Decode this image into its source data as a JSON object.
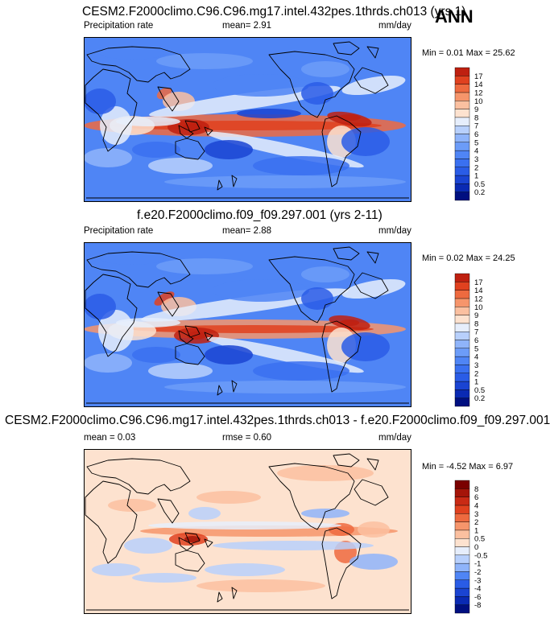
{
  "season": "ANN",
  "chart_data": [
    {
      "type": "heatmap",
      "title": "CESM2.F2000climo.C96.C96.mg17.intel.432pes.1thrds.ch013 (yrs 1)",
      "left_label": "Precipitation rate",
      "mean_text": "mean=  2.91",
      "units": "mm/day",
      "min_max_text": "Min =  0.01 Max = 25.62",
      "min": 0.01,
      "max": 25.62,
      "colorbar_levels": [
        "0.2",
        "0.5",
        "1",
        "2",
        "3",
        "4",
        "5",
        "6",
        "7",
        "8",
        "9",
        "10",
        "12",
        "14",
        "17"
      ],
      "colorbar_colors": [
        "#000f80",
        "#0a2ab3",
        "#1a44d2",
        "#2a5ce6",
        "#3a70f0",
        "#4f85f5",
        "#6c9cf8",
        "#8fb4fa",
        "#b8d0fc",
        "#e6eefc",
        "#fde2cf",
        "#fbc0a0",
        "#f6956b",
        "#ee6a3f",
        "#e0411f",
        "#bf2010"
      ]
    },
    {
      "type": "heatmap",
      "title": "f.e20.F2000climo.f09_f09.297.001 (yrs 2-11)",
      "left_label": "Precipitation rate",
      "mean_text": "mean=  2.88",
      "units": "mm/day",
      "min_max_text": "Min =  0.02 Max = 24.25",
      "min": 0.02,
      "max": 24.25,
      "colorbar_levels": [
        "0.2",
        "0.5",
        "1",
        "2",
        "3",
        "4",
        "5",
        "6",
        "7",
        "8",
        "9",
        "10",
        "12",
        "14",
        "17"
      ],
      "colorbar_colors": [
        "#000f80",
        "#0a2ab3",
        "#1a44d2",
        "#2a5ce6",
        "#3a70f0",
        "#4f85f5",
        "#6c9cf8",
        "#8fb4fa",
        "#b8d0fc",
        "#e6eefc",
        "#fde2cf",
        "#fbc0a0",
        "#f6956b",
        "#ee6a3f",
        "#e0411f",
        "#bf2010"
      ]
    },
    {
      "type": "heatmap",
      "title": "CESM2.F2000climo.C96.C96.mg17.intel.432pes.1thrds.ch013 - f.e20.F2000climo.f09_f09.297.001",
      "left_label": "mean =   0.03",
      "mean_text": "rmse =   0.60",
      "units": "mm/day",
      "min_max_text": "Min = -4.52 Max =   6.97",
      "min": -4.52,
      "max": 6.97,
      "colorbar_levels": [
        "-8",
        "-6",
        "-4",
        "-3",
        "-2",
        "-1",
        "-0.5",
        "0",
        "0.5",
        "1",
        "2",
        "3",
        "4",
        "6",
        "8"
      ],
      "colorbar_colors": [
        "#000f80",
        "#0a2ab3",
        "#1a44d2",
        "#2a5ce6",
        "#4f85f5",
        "#8fb4fa",
        "#b8d0fc",
        "#e6eefc",
        "#fde2cf",
        "#fbc0a0",
        "#f6956b",
        "#ee6a3f",
        "#e0411f",
        "#c92a15",
        "#a51509",
        "#7a0000"
      ]
    }
  ]
}
